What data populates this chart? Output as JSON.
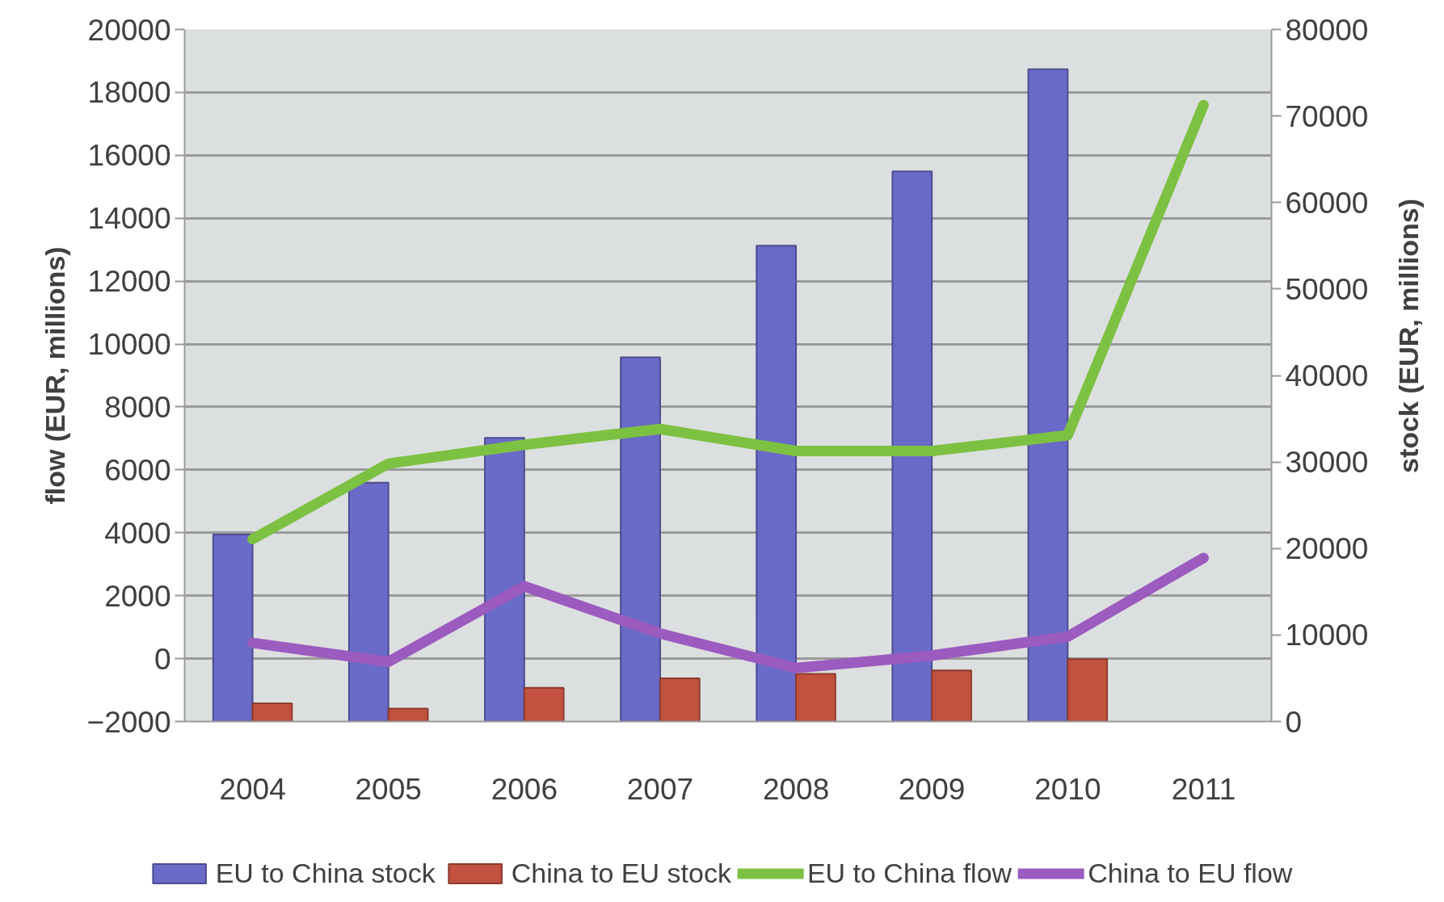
{
  "chart_data": {
    "type": "bar",
    "categories": [
      "2004",
      "2005",
      "2006",
      "2007",
      "2008",
      "2009",
      "2010",
      "2011"
    ],
    "series": [
      {
        "name": "EU to China stock",
        "type": "bar",
        "axis": "y2",
        "color": "#6a6ac8",
        "values": [
          21600,
          27600,
          32800,
          42100,
          55000,
          63600,
          75400,
          null
        ]
      },
      {
        "name": "China to EU stock",
        "type": "bar",
        "axis": "y2",
        "color": "#c2523f",
        "values": [
          2100,
          1500,
          3900,
          5000,
          5500,
          5900,
          7200,
          null
        ]
      },
      {
        "name": "EU to China flow",
        "type": "line",
        "axis": "y",
        "color": "#7dc142",
        "values": [
          3800,
          6200,
          6800,
          7300,
          6600,
          6600,
          7100,
          17600
        ]
      },
      {
        "name": "China to EU flow",
        "type": "line",
        "axis": "y",
        "color": "#9b5bbf",
        "values": [
          500,
          -100,
          2300,
          800,
          -300,
          100,
          700,
          3200
        ]
      }
    ],
    "ylabel": "flow (EUR, millions)",
    "y2label": "stock (EUR, millions)",
    "ylim": [
      -2000,
      20000
    ],
    "yticks": [
      -2000,
      0,
      2000,
      4000,
      6000,
      8000,
      10000,
      12000,
      14000,
      16000,
      18000,
      20000
    ],
    "y2lim": [
      0,
      80000
    ],
    "y2ticks": [
      0,
      10000,
      20000,
      30000,
      40000,
      50000,
      60000,
      70000,
      80000
    ],
    "grid": "y",
    "legend": "bottom"
  }
}
